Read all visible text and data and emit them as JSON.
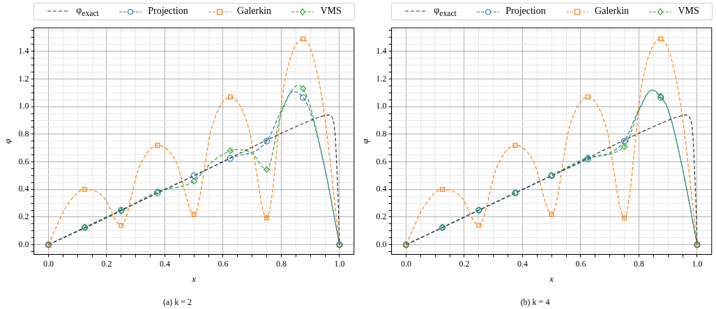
{
  "chart_data": [
    {
      "type": "line",
      "title": "(a) k = 2",
      "xlabel": "x",
      "ylabel": "φ",
      "legend": "top",
      "grid": true,
      "xlim": [
        -0.05,
        1.05
      ],
      "ylim": [
        -0.07,
        1.57
      ],
      "xticks": [
        {
          "value": 0,
          "label": "0.0"
        },
        {
          "value": 0.05,
          "label": null
        },
        {
          "value": 0.1,
          "label": null
        },
        {
          "value": 0.15,
          "label": null
        },
        {
          "value": 0.2,
          "label": "0.2"
        },
        {
          "value": 0.25,
          "label": null
        },
        {
          "value": 0.3,
          "label": null
        },
        {
          "value": 0.35,
          "label": null
        },
        {
          "value": 0.4,
          "label": "0.4"
        },
        {
          "value": 0.45,
          "label": null
        },
        {
          "value": 0.5,
          "label": null
        },
        {
          "value": 0.55,
          "label": null
        },
        {
          "value": 0.6,
          "label": "0.6"
        },
        {
          "value": 0.65,
          "label": null
        },
        {
          "value": 0.7,
          "label": null
        },
        {
          "value": 0.75,
          "label": null
        },
        {
          "value": 0.8,
          "label": "0.8"
        },
        {
          "value": 0.85,
          "label": null
        },
        {
          "value": 0.9,
          "label": null
        },
        {
          "value": 0.95,
          "label": null
        },
        {
          "value": 1,
          "label": "1.0"
        }
      ],
      "yticks": [
        {
          "value": -0.05,
          "label": null
        },
        {
          "value": 0,
          "label": "0.0"
        },
        {
          "value": 0.05,
          "label": null
        },
        {
          "value": 0.1,
          "label": null
        },
        {
          "value": 0.15,
          "label": null
        },
        {
          "value": 0.2,
          "label": "0.2"
        },
        {
          "value": 0.25,
          "label": null
        },
        {
          "value": 0.3,
          "label": null
        },
        {
          "value": 0.35,
          "label": null
        },
        {
          "value": 0.4,
          "label": "0.4"
        },
        {
          "value": 0.45,
          "label": null
        },
        {
          "value": 0.5,
          "label": null
        },
        {
          "value": 0.55,
          "label": null
        },
        {
          "value": 0.6,
          "label": "0.6"
        },
        {
          "value": 0.65,
          "label": null
        },
        {
          "value": 0.7,
          "label": null
        },
        {
          "value": 0.75,
          "label": null
        },
        {
          "value": 0.8,
          "label": "0.8"
        },
        {
          "value": 0.85,
          "label": null
        },
        {
          "value": 0.9,
          "label": null
        },
        {
          "value": 0.95,
          "label": null
        },
        {
          "value": 1,
          "label": "1.0"
        },
        {
          "value": 1.05,
          "label": null
        },
        {
          "value": 1.1,
          "label": null
        },
        {
          "value": 1.15,
          "label": null
        },
        {
          "value": 1.2,
          "label": "1.2"
        },
        {
          "value": 1.25,
          "label": null
        },
        {
          "value": 1.3,
          "label": null
        },
        {
          "value": 1.35,
          "label": null
        },
        {
          "value": 1.4,
          "label": "1.4"
        },
        {
          "value": 1.45,
          "label": null
        },
        {
          "value": 1.5,
          "label": null
        },
        {
          "value": 1.55,
          "label": null
        }
      ],
      "series": [
        {
          "name": "φ$_{exact}$",
          "type": "line",
          "color": "#333333",
          "marker": "none",
          "line_style": "dashed",
          "x": [
            0,
            0.5,
            0.9,
            0.94,
            0.96,
            0.975,
            0.985,
            0.99,
            0.995,
            1
          ],
          "values": [
            0,
            0.5,
            0.9,
            0.93,
            0.94,
            0.92,
            0.8,
            0.6,
            0.35,
            0
          ]
        },
        {
          "color": "#1f77b4",
          "marker": "none",
          "line_style": "dashed",
          "x": [
            0,
            0.25,
            0.5,
            0.625,
            0.75,
            0.8,
            0.84,
            0.875,
            0.9,
            0.95,
            1
          ],
          "values": [
            0,
            0.25,
            0.5,
            0.625,
            0.75,
            0.97,
            1.11,
            1.065,
            0.96,
            0.55,
            0
          ]
        },
        {
          "name": "Projection",
          "type": "scatter",
          "color": "#1f77b4",
          "marker": "circle",
          "x": [
            0,
            0.125,
            0.25,
            0.375,
            0.5,
            0.625,
            0.75,
            0.875,
            1
          ],
          "values": [
            0,
            0.125,
            0.25,
            0.375,
            0.5,
            0.625,
            0.75,
            1.065,
            0
          ]
        },
        {
          "type": "line",
          "color": "#ff7f0e",
          "marker": "none",
          "line_style": "dashed",
          "x": [
            0,
            0.0625,
            0.125,
            0.1875,
            0.25,
            0.3125,
            0.375,
            0.4375,
            0.5,
            0.5625,
            0.625,
            0.6875,
            0.75,
            0.8125,
            0.875,
            0.9375,
            1
          ],
          "values": [
            0,
            0.28,
            0.4,
            0.35,
            0.14,
            0.565,
            0.72,
            0.605,
            0.22,
            0.86,
            1.07,
            0.85,
            0.195,
            1.19,
            1.49,
            1.09,
            0
          ]
        },
        {
          "name": "Galerkin",
          "type": "scatter",
          "color": "#ff7f0e",
          "marker": "square",
          "x": [
            0,
            0.125,
            0.25,
            0.375,
            0.5,
            0.625,
            0.75,
            0.875,
            1
          ],
          "values": [
            0,
            0.4,
            0.14,
            0.72,
            0.22,
            1.07,
            0.195,
            1.49,
            0
          ]
        },
        {
          "type": "line",
          "color": "#2ca02c",
          "marker": "none",
          "line_style": "dashed",
          "x": [
            0,
            0.25,
            0.375,
            0.5,
            0.5625,
            0.625,
            0.65,
            0.7,
            0.75,
            0.8,
            0.86,
            0.875,
            0.9,
            0.95,
            1
          ],
          "values": [
            0,
            0.245,
            0.385,
            0.46,
            0.6,
            0.68,
            0.69,
            0.66,
            0.545,
            0.95,
            1.155,
            1.13,
            1,
            0.55,
            0
          ]
        },
        {
          "name": "VMS",
          "type": "scatter",
          "color": "#2ca02c",
          "marker": "diamond",
          "x": [
            0,
            0.125,
            0.25,
            0.375,
            0.5,
            0.625,
            0.75,
            0.875,
            1
          ],
          "values": [
            0,
            0.125,
            0.245,
            0.385,
            0.46,
            0.68,
            0.545,
            1.13,
            0
          ]
        }
      ]
    },
    {
      "type": "line",
      "title": "(b) k = 4",
      "xlabel": "x",
      "ylabel": "φ",
      "legend": "top",
      "grid": true,
      "xlim": [
        -0.05,
        1.05
      ],
      "ylim": [
        -0.07,
        1.57
      ],
      "xticks": [
        {
          "value": 0,
          "label": "0.0"
        },
        {
          "value": 0.05,
          "label": null
        },
        {
          "value": 0.1,
          "label": null
        },
        {
          "value": 0.15,
          "label": null
        },
        {
          "value": 0.2,
          "label": "0.2"
        },
        {
          "value": 0.25,
          "label": null
        },
        {
          "value": 0.3,
          "label": null
        },
        {
          "value": 0.35,
          "label": null
        },
        {
          "value": 0.4,
          "label": "0.4"
        },
        {
          "value": 0.45,
          "label": null
        },
        {
          "value": 0.5,
          "label": null
        },
        {
          "value": 0.55,
          "label": null
        },
        {
          "value": 0.6,
          "label": "0.6"
        },
        {
          "value": 0.65,
          "label": null
        },
        {
          "value": 0.7,
          "label": null
        },
        {
          "value": 0.75,
          "label": null
        },
        {
          "value": 0.8,
          "label": "0.8"
        },
        {
          "value": 0.85,
          "label": null
        },
        {
          "value": 0.9,
          "label": null
        },
        {
          "value": 0.95,
          "label": null
        },
        {
          "value": 1,
          "label": "1.0"
        }
      ],
      "yticks": [
        {
          "value": -0.05,
          "label": null
        },
        {
          "value": 0,
          "label": "0.0"
        },
        {
          "value": 0.05,
          "label": null
        },
        {
          "value": 0.1,
          "label": null
        },
        {
          "value": 0.15,
          "label": null
        },
        {
          "value": 0.2,
          "label": "0.2"
        },
        {
          "value": 0.25,
          "label": null
        },
        {
          "value": 0.3,
          "label": null
        },
        {
          "value": 0.35,
          "label": null
        },
        {
          "value": 0.4,
          "label": "0.4"
        },
        {
          "value": 0.45,
          "label": null
        },
        {
          "value": 0.5,
          "label": null
        },
        {
          "value": 0.55,
          "label": null
        },
        {
          "value": 0.6,
          "label": "0.6"
        },
        {
          "value": 0.65,
          "label": null
        },
        {
          "value": 0.7,
          "label": null
        },
        {
          "value": 0.75,
          "label": null
        },
        {
          "value": 0.8,
          "label": "0.8"
        },
        {
          "value": 0.85,
          "label": null
        },
        {
          "value": 0.9,
          "label": null
        },
        {
          "value": 0.95,
          "label": null
        },
        {
          "value": 1,
          "label": "1.0"
        },
        {
          "value": 1.05,
          "label": null
        },
        {
          "value": 1.1,
          "label": null
        },
        {
          "value": 1.15,
          "label": null
        },
        {
          "value": 1.2,
          "label": "1.2"
        },
        {
          "value": 1.25,
          "label": null
        },
        {
          "value": 1.3,
          "label": null
        },
        {
          "value": 1.35,
          "label": null
        },
        {
          "value": 1.4,
          "label": "1.4"
        },
        {
          "value": 1.45,
          "label": null
        },
        {
          "value": 1.5,
          "label": null
        },
        {
          "value": 1.55,
          "label": null
        }
      ],
      "series": [
        {
          "name": "φ$_{exact}$",
          "type": "line",
          "color": "#333333",
          "marker": "none",
          "line_style": "dashed",
          "x": [
            0,
            0.5,
            0.9,
            0.94,
            0.96,
            0.975,
            0.985,
            0.99,
            0.995,
            1
          ],
          "values": [
            0,
            0.5,
            0.9,
            0.93,
            0.94,
            0.92,
            0.8,
            0.6,
            0.35,
            0
          ]
        },
        {
          "color": "#1f77b4",
          "marker": "none",
          "line_style": "dashed",
          "x": [
            0,
            0.25,
            0.5,
            0.625,
            0.75,
            0.8,
            0.845,
            0.875,
            0.9,
            0.95,
            1
          ],
          "values": [
            0,
            0.25,
            0.5,
            0.62,
            0.75,
            0.98,
            1.12,
            1.065,
            0.98,
            0.55,
            0
          ]
        },
        {
          "name": "Projection",
          "type": "scatter",
          "color": "#1f77b4",
          "marker": "circle",
          "x": [
            0,
            0.125,
            0.25,
            0.375,
            0.5,
            0.625,
            0.75,
            0.875,
            1
          ],
          "values": [
            0,
            0.125,
            0.25,
            0.375,
            0.5,
            0.62,
            0.75,
            1.065,
            0
          ]
        },
        {
          "type": "line",
          "color": "#ff7f0e",
          "marker": "none",
          "line_style": "dashed",
          "x": [
            0,
            0.0625,
            0.125,
            0.1875,
            0.25,
            0.3125,
            0.375,
            0.4375,
            0.5,
            0.5625,
            0.625,
            0.6875,
            0.75,
            0.8125,
            0.875,
            0.9375,
            1
          ],
          "values": [
            0,
            0.28,
            0.4,
            0.35,
            0.14,
            0.565,
            0.72,
            0.605,
            0.22,
            0.86,
            1.07,
            0.85,
            0.195,
            1.19,
            1.49,
            1.09,
            0
          ]
        },
        {
          "name": "Galerkin",
          "type": "scatter",
          "color": "#ff7f0e",
          "marker": "square",
          "x": [
            0,
            0.125,
            0.25,
            0.375,
            0.5,
            0.625,
            0.75,
            0.875,
            1
          ],
          "values": [
            0,
            0.4,
            0.14,
            0.72,
            0.22,
            1.07,
            0.195,
            1.49,
            0
          ]
        },
        {
          "color": "#2ca02c",
          "marker": "none",
          "line_style": "dashed",
          "x": [
            0,
            0.25,
            0.5,
            0.625,
            0.75,
            0.8,
            0.845,
            0.875,
            0.9,
            0.95,
            1
          ],
          "values": [
            0,
            0.25,
            0.5,
            0.63,
            0.71,
            0.97,
            1.12,
            1.075,
            0.98,
            0.55,
            0
          ]
        },
        {
          "name": "VMS",
          "type": "scatter",
          "color": "#2ca02c",
          "marker": "diamond",
          "x": [
            0,
            0.125,
            0.25,
            0.375,
            0.5,
            0.625,
            0.75,
            0.875,
            1
          ],
          "values": [
            0,
            0.125,
            0.25,
            0.375,
            0.5,
            0.63,
            0.71,
            1.075,
            0
          ]
        }
      ]
    }
  ]
}
